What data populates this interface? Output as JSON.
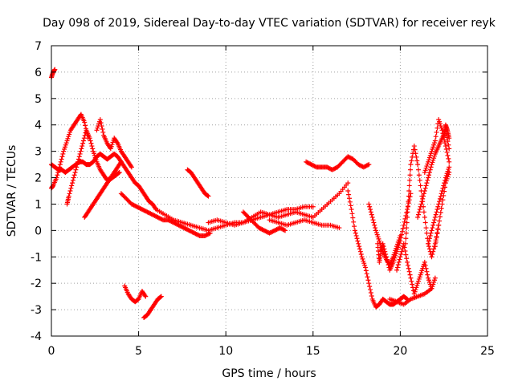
{
  "chart_data": {
    "type": "scatter",
    "title": "Day 098 of 2019, Sidereal Day-to-day VTEC variation (SDTVAR) for receiver reyk",
    "xlabel": "GPS time / hours",
    "ylabel": "SDTVAR / TECUs",
    "xlim": [
      0,
      25
    ],
    "ylim": [
      -4,
      7
    ],
    "xticks": [
      0,
      5,
      10,
      15,
      20,
      25
    ],
    "yticks": [
      -4,
      -3,
      -2,
      -1,
      0,
      1,
      2,
      3,
      4,
      5,
      6,
      7
    ],
    "grid": true,
    "marker": "+",
    "color": "#ff0000",
    "series": [
      {
        "name": "s1",
        "x": [
          0.0,
          0.1,
          0.2
        ],
        "y": [
          5.8,
          6.0,
          6.1
        ]
      },
      {
        "name": "s2",
        "x": [
          0.0,
          0.2,
          0.4,
          0.6,
          0.8,
          1.0,
          1.2,
          1.4,
          1.6,
          1.8,
          2.0,
          2.2,
          2.4,
          2.6,
          2.8,
          3.0,
          3.2,
          3.4,
          3.6,
          3.8,
          4.0,
          4.2,
          4.4,
          4.6,
          4.8,
          5.0,
          5.2,
          5.4,
          5.6,
          5.8,
          6.0,
          6.5,
          7.0,
          7.5,
          8.0,
          8.5,
          9.0,
          9.5,
          10.0,
          10.5,
          11.0,
          11.5,
          12.0,
          12.5,
          13.0,
          13.5,
          14.0,
          14.5,
          15.0
        ],
        "y": [
          2.5,
          2.4,
          2.3,
          2.3,
          2.2,
          2.3,
          2.4,
          2.5,
          2.6,
          2.6,
          2.5,
          2.5,
          2.6,
          2.8,
          2.9,
          2.8,
          2.7,
          2.8,
          2.9,
          2.8,
          2.6,
          2.4,
          2.2,
          2.0,
          1.8,
          1.7,
          1.5,
          1.3,
          1.1,
          1.0,
          0.8,
          0.6,
          0.4,
          0.3,
          0.2,
          0.1,
          0.0,
          0.1,
          0.2,
          0.3,
          0.3,
          0.4,
          0.5,
          0.6,
          0.7,
          0.8,
          0.8,
          0.9,
          0.9
        ]
      },
      {
        "name": "s3",
        "x": [
          0.0,
          0.1,
          0.3,
          0.5,
          0.7,
          0.9,
          1.1,
          1.3,
          1.5,
          1.7,
          1.9,
          2.1
        ],
        "y": [
          1.6,
          1.7,
          2.0,
          2.5,
          3.0,
          3.4,
          3.8,
          4.0,
          4.2,
          4.4,
          4.1,
          3.5
        ]
      },
      {
        "name": "s4",
        "x": [
          0.9,
          1.0,
          1.2,
          1.4,
          1.6,
          1.8,
          2.0,
          2.2,
          2.4,
          2.6,
          2.8,
          3.0,
          3.2,
          3.4,
          3.6,
          3.8,
          4.0
        ],
        "y": [
          1.0,
          1.3,
          1.8,
          2.3,
          2.8,
          3.3,
          3.8,
          3.5,
          3.0,
          2.6,
          2.3,
          2.1,
          1.9,
          2.0,
          2.2,
          2.4,
          2.6
        ]
      },
      {
        "name": "s5",
        "x": [
          1.9,
          2.1,
          2.3,
          2.5,
          2.7,
          2.9,
          3.1,
          3.3,
          3.5,
          3.7,
          3.9
        ],
        "y": [
          0.5,
          0.7,
          0.9,
          1.1,
          1.3,
          1.5,
          1.7,
          1.9,
          2.0,
          2.1,
          2.2
        ]
      },
      {
        "name": "s6",
        "x": [
          2.6,
          2.8,
          3.0,
          3.2,
          3.4,
          3.6,
          3.8,
          4.0,
          4.2,
          4.4,
          4.6
        ],
        "y": [
          3.8,
          4.2,
          3.6,
          3.3,
          3.1,
          3.5,
          3.3,
          3.0,
          2.8,
          2.6,
          2.4
        ]
      },
      {
        "name": "s7",
        "x": [
          4.0,
          4.3,
          4.6,
          4.9,
          5.2,
          5.5,
          5.8,
          6.1,
          6.4,
          6.7,
          7.0,
          7.3,
          7.6,
          7.9,
          8.2,
          8.5,
          8.8,
          9.1
        ],
        "y": [
          1.4,
          1.2,
          1.0,
          0.9,
          0.8,
          0.7,
          0.6,
          0.5,
          0.4,
          0.4,
          0.3,
          0.2,
          0.1,
          0.0,
          -0.1,
          -0.2,
          -0.2,
          -0.1
        ]
      },
      {
        "name": "s8",
        "x": [
          4.2,
          4.4,
          4.6,
          4.8,
          5.0,
          5.2,
          5.4
        ],
        "y": [
          -2.1,
          -2.4,
          -2.6,
          -2.7,
          -2.6,
          -2.3,
          -2.5
        ]
      },
      {
        "name": "s9",
        "x": [
          5.3,
          5.5,
          5.7,
          5.9,
          6.1,
          6.3
        ],
        "y": [
          -3.3,
          -3.2,
          -3.0,
          -2.8,
          -2.6,
          -2.5
        ]
      },
      {
        "name": "s10",
        "x": [
          7.8,
          8.0,
          8.2,
          8.4,
          8.6,
          8.8,
          9.0
        ],
        "y": [
          2.3,
          2.2,
          2.0,
          1.8,
          1.6,
          1.4,
          1.3
        ]
      },
      {
        "name": "s11",
        "x": [
          9.0,
          9.5,
          10.0,
          10.5,
          11.0,
          11.5,
          12.0,
          12.5,
          13.0,
          13.5,
          14.0,
          14.5,
          15.0,
          15.5,
          16.0,
          16.5,
          17.0
        ],
        "y": [
          0.3,
          0.4,
          0.3,
          0.2,
          0.3,
          0.5,
          0.7,
          0.6,
          0.5,
          0.6,
          0.7,
          0.6,
          0.5,
          0.8,
          1.1,
          1.4,
          1.8
        ]
      },
      {
        "name": "s12",
        "x": [
          11.0,
          11.3,
          11.6,
          11.9,
          12.2,
          12.5,
          12.8,
          13.1,
          13.4
        ],
        "y": [
          0.7,
          0.5,
          0.3,
          0.1,
          0.0,
          -0.1,
          0.0,
          0.1,
          0.0
        ]
      },
      {
        "name": "s13",
        "x": [
          12.5,
          13.0,
          13.5,
          14.0,
          14.5,
          15.0,
          15.5,
          16.0,
          16.5
        ],
        "y": [
          0.4,
          0.3,
          0.2,
          0.3,
          0.4,
          0.3,
          0.2,
          0.2,
          0.1
        ]
      },
      {
        "name": "s14",
        "x": [
          14.6,
          14.9,
          15.2,
          15.5,
          15.8,
          16.1,
          16.4,
          16.7,
          17.0,
          17.3,
          17.6,
          17.9,
          18.2
        ],
        "y": [
          2.6,
          2.5,
          2.4,
          2.4,
          2.4,
          2.3,
          2.4,
          2.6,
          2.8,
          2.7,
          2.5,
          2.4,
          2.5
        ]
      },
      {
        "name": "s15",
        "x": [
          17.0,
          17.2,
          17.4,
          17.6,
          17.8,
          18.0,
          18.2,
          18.4,
          18.6,
          18.8,
          19.0,
          19.2,
          19.4,
          19.6,
          19.8,
          20.0,
          20.2,
          20.4
        ],
        "y": [
          1.5,
          0.8,
          0.0,
          -0.5,
          -1.0,
          -1.4,
          -2.0,
          -2.6,
          -2.9,
          -2.8,
          -2.6,
          -2.7,
          -2.8,
          -2.8,
          -2.7,
          -2.6,
          -2.5,
          -2.6
        ]
      },
      {
        "name": "s16",
        "x": [
          18.2,
          18.4,
          18.6,
          18.8,
          19.0,
          19.2,
          19.4,
          19.6,
          19.8,
          20.0
        ],
        "y": [
          1.0,
          0.5,
          0.0,
          -0.4,
          -0.8,
          -1.1,
          -1.3,
          -1.0,
          -0.6,
          -0.2
        ]
      },
      {
        "name": "s17",
        "x": [
          18.7,
          18.8,
          18.9,
          19.0,
          19.2,
          19.4,
          19.6,
          19.8,
          20.0,
          20.2,
          20.4,
          20.6
        ],
        "y": [
          -0.5,
          -1.2,
          -0.8,
          -0.5,
          -1.0,
          -1.5,
          -1.2,
          -0.8,
          -0.4,
          0.2,
          0.8,
          1.4
        ]
      },
      {
        "name": "s18",
        "x": [
          19.8,
          20.0,
          20.2,
          20.4,
          20.6,
          20.8,
          21.0,
          21.2,
          21.4,
          21.6,
          21.8,
          22.0
        ],
        "y": [
          -1.5,
          -1.0,
          -0.5,
          -1.2,
          -1.8,
          -2.4,
          -2.0,
          -1.6,
          -1.2,
          -1.8,
          -2.2,
          -1.8
        ]
      },
      {
        "name": "s19",
        "x": [
          20.3,
          20.4,
          20.5,
          20.6,
          20.8,
          21.0,
          21.2,
          21.4,
          21.6,
          21.8,
          22.0,
          22.2
        ],
        "y": [
          -0.5,
          0.5,
          1.5,
          2.5,
          3.2,
          2.5,
          1.5,
          0.5,
          -0.5,
          -1.0,
          -0.5,
          0.2
        ]
      },
      {
        "name": "s20",
        "x": [
          21.0,
          21.2,
          21.4,
          21.6,
          21.8,
          22.0,
          22.2,
          22.4,
          22.6,
          22.8
        ],
        "y": [
          0.5,
          1.0,
          1.5,
          2.0,
          2.5,
          2.9,
          3.2,
          3.5,
          3.8,
          3.1
        ]
      },
      {
        "name": "s21",
        "x": [
          21.4,
          21.6,
          21.8,
          22.0,
          22.2,
          22.4,
          22.6,
          22.8
        ],
        "y": [
          2.2,
          2.6,
          3.0,
          3.4,
          4.2,
          3.8,
          3.2,
          2.6
        ]
      },
      {
        "name": "s22",
        "x": [
          21.6,
          21.8,
          22.0,
          22.2,
          22.4,
          22.6,
          22.8
        ],
        "y": [
          -0.5,
          0.0,
          0.5,
          1.0,
          1.5,
          2.0,
          2.4
        ]
      },
      {
        "name": "s23",
        "x": [
          22.0,
          22.2,
          22.4,
          22.6,
          22.8
        ],
        "y": [
          -0.6,
          0.2,
          1.0,
          1.8,
          2.2
        ]
      },
      {
        "name": "s24",
        "x": [
          22.5,
          22.6,
          22.7,
          22.8
        ],
        "y": [
          3.6,
          4.0,
          3.8,
          3.5
        ]
      },
      {
        "name": "s25",
        "x": [
          19.4,
          19.8,
          20.2,
          20.6,
          21.0,
          21.4,
          21.8
        ],
        "y": [
          -2.6,
          -2.7,
          -2.8,
          -2.6,
          -2.5,
          -2.4,
          -2.2
        ]
      }
    ]
  }
}
